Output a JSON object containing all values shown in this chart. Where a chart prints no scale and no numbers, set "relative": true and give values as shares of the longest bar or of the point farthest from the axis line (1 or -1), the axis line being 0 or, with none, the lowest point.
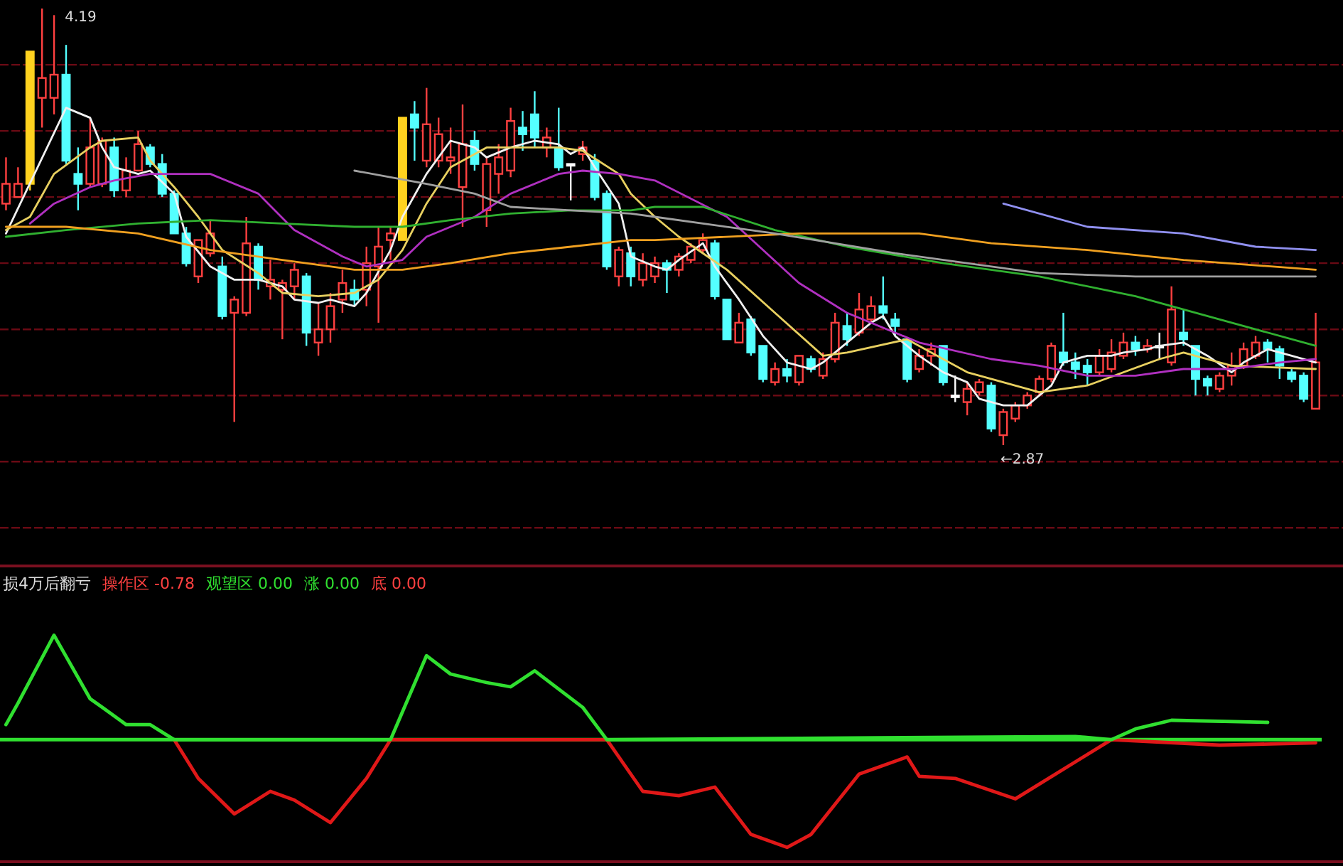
{
  "chart_data": [
    {
      "type": "candlestick",
      "grid": "y",
      "yticks": [
        {
          "value": 4.02,
          "label": null
        },
        {
          "value": 3.82,
          "label": null
        },
        {
          "value": 3.62,
          "label": null
        },
        {
          "value": 3.42,
          "label": null
        },
        {
          "value": 3.22,
          "label": null
        },
        {
          "value": 3.02,
          "label": null
        },
        {
          "value": 2.82,
          "label": null
        },
        {
          "value": 2.62,
          "label": null
        }
      ],
      "categories": [
        null,
        null,
        null,
        null,
        null,
        null,
        null,
        null,
        null,
        null,
        null,
        null,
        null,
        null,
        null,
        null,
        null,
        null,
        null,
        null,
        null,
        null,
        null,
        null,
        null,
        null,
        null,
        null,
        null,
        null,
        null,
        null,
        null,
        null,
        null,
        null,
        null,
        null,
        null,
        null,
        null,
        null,
        null,
        null,
        null,
        null,
        null,
        null,
        null,
        null,
        null,
        null,
        null,
        null,
        null,
        null,
        null,
        null,
        null,
        null,
        null,
        null,
        null,
        null,
        null,
        null,
        null,
        null,
        null,
        null,
        null,
        null,
        null,
        null,
        null,
        null,
        null,
        null,
        null,
        null,
        null,
        null,
        null,
        null,
        null,
        null,
        null,
        null,
        null,
        null,
        null,
        null,
        null,
        null,
        null,
        null,
        null,
        null,
        null,
        null,
        null,
        null,
        null,
        null,
        null,
        null,
        null,
        null,
        null,
        null
      ],
      "ohlc": [
        [
          3.6,
          3.74,
          3.58,
          3.66
        ],
        [
          3.62,
          3.71,
          3.62,
          3.66
        ],
        [
          3.66,
          4.06,
          3.64,
          4.06
        ],
        [
          3.92,
          4.19,
          3.83,
          3.98
        ],
        [
          3.92,
          4.17,
          3.87,
          3.99
        ],
        [
          3.99,
          4.08,
          3.72,
          3.73
        ],
        [
          3.69,
          3.77,
          3.58,
          3.66
        ],
        [
          3.66,
          3.86,
          3.65,
          3.77
        ],
        [
          3.66,
          3.8,
          3.65,
          3.79
        ],
        [
          3.77,
          3.8,
          3.62,
          3.64
        ],
        [
          3.64,
          3.74,
          3.62,
          3.7
        ],
        [
          3.7,
          3.82,
          3.7,
          3.78
        ],
        [
          3.77,
          3.78,
          3.71,
          3.72
        ],
        [
          3.72,
          3.75,
          3.62,
          3.63
        ],
        [
          3.63,
          3.64,
          3.51,
          3.51
        ],
        [
          3.51,
          3.53,
          3.41,
          3.42
        ],
        [
          3.38,
          3.49,
          3.36,
          3.49
        ],
        [
          3.45,
          3.55,
          3.44,
          3.51
        ],
        [
          3.41,
          3.44,
          3.25,
          3.26
        ],
        [
          3.27,
          3.32,
          2.94,
          3.31
        ],
        [
          3.27,
          3.56,
          3.26,
          3.48
        ],
        [
          3.47,
          3.48,
          3.34,
          3.37
        ],
        [
          3.35,
          3.43,
          3.31,
          3.37
        ],
        [
          3.34,
          3.37,
          3.19,
          3.36
        ],
        [
          3.35,
          3.42,
          3.31,
          3.4
        ],
        [
          3.38,
          3.39,
          3.17,
          3.21
        ],
        [
          3.18,
          3.3,
          3.14,
          3.22
        ],
        [
          3.22,
          3.33,
          3.18,
          3.29
        ],
        [
          3.31,
          3.4,
          3.27,
          3.36
        ],
        [
          3.34,
          3.37,
          3.29,
          3.31
        ],
        [
          3.34,
          3.47,
          3.29,
          3.42
        ],
        [
          3.41,
          3.53,
          3.24,
          3.47
        ],
        [
          3.49,
          3.53,
          3.43,
          3.51
        ],
        [
          3.49,
          3.86,
          3.49,
          3.86
        ],
        [
          3.87,
          3.91,
          3.73,
          3.83
        ],
        [
          3.73,
          3.95,
          3.71,
          3.84
        ],
        [
          3.73,
          3.86,
          3.71,
          3.81
        ],
        [
          3.73,
          3.83,
          3.69,
          3.74
        ],
        [
          3.65,
          3.9,
          3.53,
          3.78
        ],
        [
          3.79,
          3.82,
          3.7,
          3.72
        ],
        [
          3.58,
          3.74,
          3.53,
          3.72
        ],
        [
          3.69,
          3.78,
          3.63,
          3.74
        ],
        [
          3.7,
          3.89,
          3.68,
          3.85
        ],
        [
          3.83,
          3.88,
          3.76,
          3.81
        ],
        [
          3.87,
          3.94,
          3.77,
          3.8
        ],
        [
          3.77,
          3.83,
          3.74,
          3.8
        ],
        [
          3.77,
          3.89,
          3.7,
          3.71
        ],
        [
          3.72,
          3.72,
          3.61,
          3.72
        ],
        [
          3.75,
          3.79,
          3.73,
          3.77
        ],
        [
          3.73,
          3.75,
          3.61,
          3.62
        ],
        [
          3.63,
          3.64,
          3.4,
          3.41
        ],
        [
          3.38,
          3.47,
          3.35,
          3.46
        ],
        [
          3.45,
          3.47,
          3.35,
          3.38
        ],
        [
          3.37,
          3.45,
          3.35,
          3.42
        ],
        [
          3.38,
          3.44,
          3.36,
          3.42
        ],
        [
          3.42,
          3.43,
          3.33,
          3.4
        ],
        [
          3.4,
          3.45,
          3.38,
          3.44
        ],
        [
          3.43,
          3.48,
          3.42,
          3.47
        ],
        [
          3.46,
          3.51,
          3.45,
          3.49
        ],
        [
          3.48,
          3.49,
          3.31,
          3.32
        ],
        [
          3.31,
          3.31,
          3.19,
          3.19
        ],
        [
          3.18,
          3.27,
          3.18,
          3.24
        ],
        [
          3.25,
          3.26,
          3.14,
          3.15
        ],
        [
          3.17,
          3.17,
          3.06,
          3.07
        ],
        [
          3.06,
          3.12,
          3.05,
          3.1
        ],
        [
          3.1,
          3.13,
          3.06,
          3.08
        ],
        [
          3.06,
          3.14,
          3.05,
          3.14
        ],
        [
          3.13,
          3.14,
          3.09,
          3.1
        ],
        [
          3.08,
          3.15,
          3.07,
          3.13
        ],
        [
          3.13,
          3.27,
          3.12,
          3.24
        ],
        [
          3.23,
          3.27,
          3.17,
          3.19
        ],
        [
          3.21,
          3.33,
          3.2,
          3.28
        ],
        [
          3.25,
          3.32,
          3.24,
          3.29
        ],
        [
          3.29,
          3.38,
          3.25,
          3.27
        ],
        [
          3.25,
          3.27,
          3.2,
          3.23
        ],
        [
          3.19,
          3.19,
          3.06,
          3.07
        ],
        [
          3.1,
          3.16,
          3.09,
          3.14
        ],
        [
          3.14,
          3.18,
          3.11,
          3.16
        ],
        [
          3.17,
          3.17,
          3.05,
          3.06
        ],
        [
          3.02,
          3.08,
          3.0,
          3.02
        ],
        [
          3.0,
          3.06,
          2.96,
          3.04
        ],
        [
          3.03,
          3.07,
          3.02,
          3.06
        ],
        [
          3.05,
          3.06,
          2.91,
          2.92
        ],
        [
          2.9,
          2.98,
          2.87,
          2.97
        ],
        [
          2.95,
          3.0,
          2.94,
          2.99
        ],
        [
          2.99,
          3.03,
          2.98,
          3.02
        ],
        [
          3.03,
          3.08,
          3.02,
          3.07
        ],
        [
          3.07,
          3.18,
          3.06,
          3.17
        ],
        [
          3.15,
          3.27,
          3.11,
          3.12
        ],
        [
          3.12,
          3.15,
          3.07,
          3.1
        ],
        [
          3.11,
          3.13,
          3.05,
          3.09
        ],
        [
          3.09,
          3.16,
          3.08,
          3.14
        ],
        [
          3.1,
          3.19,
          3.09,
          3.15
        ],
        [
          3.14,
          3.21,
          3.13,
          3.18
        ],
        [
          3.18,
          3.2,
          3.14,
          3.16
        ],
        [
          3.16,
          3.19,
          3.15,
          3.17
        ],
        [
          3.17,
          3.21,
          3.13,
          3.17
        ],
        [
          3.12,
          3.35,
          3.11,
          3.28
        ],
        [
          3.21,
          3.28,
          3.17,
          3.19
        ],
        [
          3.17,
          3.17,
          3.02,
          3.07
        ],
        [
          3.07,
          3.08,
          3.02,
          3.05
        ],
        [
          3.04,
          3.09,
          3.03,
          3.08
        ],
        [
          3.08,
          3.15,
          3.05,
          3.11
        ],
        [
          3.11,
          3.18,
          3.1,
          3.16
        ],
        [
          3.14,
          3.2,
          3.13,
          3.18
        ],
        [
          3.18,
          3.19,
          3.12,
          3.16
        ],
        [
          3.16,
          3.17,
          3.07,
          3.11
        ],
        [
          3.09,
          3.1,
          3.06,
          3.07
        ],
        [
          3.08,
          3.09,
          3.0,
          3.01
        ],
        [
          2.98,
          3.27,
          2.98,
          3.12
        ]
      ],
      "colors": [
        "#ff4040",
        "#ff4040",
        "#ffd21f",
        "#ff4040",
        "#ff4040",
        "#54ffff",
        "#54ffff",
        "#ff4040",
        "#ff4040",
        "#54ffff",
        "#ff4040",
        "#ff4040",
        "#54ffff",
        "#54ffff",
        "#54ffff",
        "#54ffff",
        "#ff4040",
        "#ff4040",
        "#54ffff",
        "#ff4040",
        "#ff4040",
        "#54ffff",
        "#ff4040",
        "#ff4040",
        "#ff4040",
        "#54ffff",
        "#ff4040",
        "#ff4040",
        "#ff4040",
        "#54ffff",
        "#ff4040",
        "#ff4040",
        "#ff4040",
        "#ffd21f",
        "#54ffff",
        "#ff4040",
        "#ff4040",
        "#ff4040",
        "#ff4040",
        "#54ffff",
        "#ff4040",
        "#ff4040",
        "#ff4040",
        "#54ffff",
        "#54ffff",
        "#ff4040",
        "#54ffff",
        "#ffffff",
        "#ff4040",
        "#54ffff",
        "#54ffff",
        "#ff4040",
        "#54ffff",
        "#ff4040",
        "#ff4040",
        "#54ffff",
        "#ff4040",
        "#ff4040",
        "#ff4040",
        "#54ffff",
        "#54ffff",
        "#ff4040",
        "#54ffff",
        "#54ffff",
        "#ff4040",
        "#54ffff",
        "#ff4040",
        "#54ffff",
        "#ff4040",
        "#ff4040",
        "#54ffff",
        "#ff4040",
        "#ff4040",
        "#54ffff",
        "#54ffff",
        "#54ffff",
        "#ff4040",
        "#ff4040",
        "#54ffff",
        "#ffffff",
        "#ff4040",
        "#ff4040",
        "#54ffff",
        "#ff4040",
        "#ff4040",
        "#ff4040",
        "#ff4040",
        "#ff4040",
        "#54ffff",
        "#54ffff",
        "#54ffff",
        "#ff4040",
        "#ff4040",
        "#ff4040",
        "#54ffff",
        "#ff4040",
        "#ffffff",
        "#ff4040",
        "#54ffff",
        "#54ffff",
        "#54ffff",
        "#ff4040",
        "#ff4040",
        "#ff4040",
        "#ff4040",
        "#54ffff",
        "#54ffff",
        "#54ffff",
        "#54ffff",
        "#ff4040"
      ],
      "series": [
        {
          "type": "line",
          "color": "#f0f0f0",
          "values": [
            3.51,
            null,
            null,
            null,
            null,
            3.89,
            null,
            3.86,
            3.77,
            3.71,
            null,
            3.69,
            3.7,
            null,
            3.63,
            3.5,
            null,
            3.41,
            null,
            3.37,
            null,
            3.37,
            null,
            3.35,
            3.31,
            null,
            3.3,
            3.31,
            null,
            3.29,
            3.33,
            null,
            3.46,
            3.56,
            null,
            3.69,
            null,
            3.79,
            null,
            3.77,
            3.74,
            null,
            3.77,
            null,
            3.79,
            null,
            3.78,
            3.75,
            3.77,
            3.71,
            null,
            3.6,
            3.44,
            null,
            3.41,
            3.4,
            3.43,
            null,
            3.48,
            3.41,
            null,
            3.31,
            null,
            3.2,
            null,
            3.12,
            null,
            3.1,
            3.12,
            null,
            3.18,
            null,
            3.24,
            3.26,
            3.2,
            null,
            3.14,
            null,
            3.09,
            null,
            3.06,
            3.01,
            null,
            2.99,
            null,
            2.99,
            null,
            3.05,
            3.12,
            null,
            3.14,
            null,
            3.14,
            3.15,
            null,
            3.16,
            3.17,
            null,
            3.18,
            null,
            3.14,
            null,
            3.09,
            3.12,
            null,
            3.16,
            null,
            3.14,
            null,
            3.12
          ]
        },
        {
          "type": "line",
          "color": "#e8d060",
          "values": [
            3.52,
            null,
            3.56,
            null,
            3.69,
            null,
            null,
            3.77,
            3.79,
            null,
            null,
            3.8,
            3.73,
            null,
            3.65,
            null,
            3.56,
            null,
            3.46,
            null,
            null,
            3.39,
            null,
            3.33,
            null,
            null,
            3.32,
            null,
            null,
            3.33,
            null,
            3.37,
            null,
            3.46,
            null,
            3.6,
            null,
            3.71,
            null,
            null,
            3.77,
            null,
            null,
            3.77,
            null,
            null,
            3.77,
            null,
            3.76,
            null,
            null,
            3.69,
            3.63,
            null,
            3.56,
            null,
            3.5,
            null,
            null,
            null,
            3.4,
            null,
            null,
            null,
            3.27,
            null,
            null,
            null,
            3.14,
            null,
            3.15,
            null,
            null,
            null,
            null,
            3.19,
            null,
            null,
            null,
            null,
            3.09,
            null,
            null,
            null,
            null,
            null,
            3.03,
            null,
            null,
            null,
            3.05,
            null,
            null,
            null,
            null,
            null,
            3.13,
            null,
            3.15,
            null,
            null,
            null,
            3.11,
            null,
            null,
            null,
            null,
            null,
            null,
            3.1
          ]
        },
        {
          "type": "line",
          "color": "#b030c0",
          "values": [
            null,
            null,
            3.54,
            null,
            3.6,
            null,
            null,
            3.65,
            null,
            3.67,
            null,
            null,
            3.69,
            null,
            null,
            null,
            null,
            3.69,
            null,
            null,
            null,
            3.63,
            null,
            null,
            3.52,
            null,
            null,
            null,
            3.44,
            null,
            3.41,
            null,
            null,
            3.43,
            null,
            3.5,
            null,
            null,
            null,
            3.56,
            null,
            null,
            3.63,
            null,
            null,
            null,
            3.69,
            null,
            3.7,
            null,
            null,
            3.69,
            null,
            null,
            3.67,
            null,
            null,
            null,
            null,
            null,
            3.56,
            null,
            null,
            null,
            null,
            null,
            3.36,
            null,
            null,
            null,
            3.27,
            null,
            null,
            null,
            null,
            null,
            3.18,
            null,
            null,
            null,
            null,
            null,
            3.13,
            null,
            null,
            null,
            3.11,
            null,
            null,
            null,
            3.08,
            null,
            null,
            null,
            3.08,
            null,
            null,
            null,
            3.1,
            null,
            null,
            null,
            3.1,
            null,
            null,
            null,
            3.12,
            null,
            null,
            3.13
          ]
        },
        {
          "type": "line",
          "color": "#30b030",
          "values": [
            3.5,
            null,
            null,
            null,
            null,
            3.52,
            null,
            null,
            null,
            null,
            null,
            3.54,
            null,
            null,
            null,
            null,
            null,
            3.55,
            null,
            null,
            null,
            null,
            null,
            3.54,
            null,
            null,
            null,
            null,
            null,
            3.53,
            null,
            null,
            null,
            3.53,
            null,
            null,
            null,
            3.55,
            null,
            null,
            null,
            null,
            3.57,
            null,
            null,
            null,
            null,
            3.58,
            null,
            null,
            null,
            null,
            3.58,
            null,
            3.59,
            null,
            null,
            null,
            3.59,
            null,
            null,
            null,
            null,
            null,
            3.52,
            null,
            null,
            null,
            null,
            null,
            3.47,
            null,
            null,
            null,
            null,
            null,
            null,
            null,
            3.42,
            null,
            null,
            null,
            null,
            null,
            null,
            null,
            3.38,
            null,
            null,
            null,
            null,
            null,
            null,
            null,
            3.32,
            null,
            null,
            null,
            null,
            null,
            null,
            null,
            3.24,
            null,
            null,
            null,
            null,
            null,
            null,
            3.17
          ]
        },
        {
          "type": "line",
          "color": "#f0a020",
          "values": [
            3.53,
            null,
            null,
            null,
            null,
            3.53,
            null,
            null,
            null,
            null,
            null,
            3.51,
            null,
            null,
            null,
            null,
            null,
            3.46,
            null,
            null,
            null,
            null,
            null,
            3.43,
            null,
            null,
            null,
            null,
            null,
            3.4,
            null,
            null,
            null,
            3.4,
            null,
            null,
            null,
            3.42,
            null,
            null,
            null,
            null,
            3.45,
            null,
            null,
            null,
            null,
            3.47,
            null,
            null,
            null,
            null,
            3.49,
            null,
            3.49,
            null,
            null,
            null,
            null,
            null,
            null,
            null,
            null,
            null,
            null,
            null,
            3.51,
            null,
            null,
            null,
            null,
            null,
            null,
            null,
            null,
            null,
            3.51,
            null,
            null,
            null,
            null,
            null,
            3.48,
            null,
            null,
            null,
            null,
            null,
            null,
            null,
            3.46,
            null,
            null,
            null,
            null,
            null,
            null,
            null,
            3.43,
            null,
            null,
            null,
            null,
            null,
            null,
            null,
            null,
            null,
            null,
            3.4
          ]
        },
        {
          "type": "line",
          "color": "#a0a0a0",
          "values": [
            null,
            null,
            null,
            null,
            null,
            null,
            null,
            null,
            null,
            null,
            null,
            null,
            null,
            null,
            null,
            null,
            null,
            null,
            null,
            null,
            null,
            null,
            null,
            null,
            null,
            null,
            null,
            null,
            null,
            3.7,
            null,
            null,
            null,
            null,
            null,
            3.66,
            null,
            null,
            null,
            3.63,
            null,
            null,
            3.59,
            null,
            null,
            null,
            null,
            3.58,
            null,
            null,
            null,
            null,
            3.57,
            null,
            3.56,
            null,
            null,
            null,
            null,
            null,
            null,
            null,
            null,
            null,
            3.51,
            null,
            null,
            null,
            null,
            null,
            null,
            null,
            null,
            null,
            3.45,
            null,
            null,
            null,
            null,
            null,
            null,
            null,
            null,
            null,
            null,
            null,
            3.39,
            null,
            null,
            null,
            null,
            null,
            null,
            null,
            3.38,
            null,
            null,
            null,
            null,
            null,
            null,
            null,
            null,
            null,
            null,
            null,
            null,
            null,
            null,
            3.38
          ]
        },
        {
          "type": "line",
          "color": "#9090f0",
          "values": [
            null,
            null,
            null,
            null,
            null,
            null,
            null,
            null,
            null,
            null,
            null,
            null,
            null,
            null,
            null,
            null,
            null,
            null,
            null,
            null,
            null,
            null,
            null,
            null,
            null,
            null,
            null,
            null,
            null,
            null,
            null,
            null,
            null,
            null,
            null,
            null,
            null,
            null,
            null,
            null,
            null,
            null,
            null,
            null,
            null,
            null,
            null,
            null,
            null,
            null,
            null,
            null,
            null,
            null,
            null,
            null,
            null,
            null,
            null,
            null,
            null,
            null,
            null,
            null,
            null,
            null,
            null,
            null,
            null,
            null,
            null,
            null,
            null,
            null,
            null,
            null,
            null,
            null,
            null,
            null,
            null,
            null,
            null,
            3.6,
            null,
            null,
            null,
            null,
            null,
            null,
            3.53,
            null,
            null,
            null,
            null,
            null,
            null,
            null,
            3.51,
            null,
            null,
            null,
            null,
            null,
            3.47,
            null,
            null,
            null,
            null,
            3.46
          ]
        }
      ],
      "annotations": [
        "4.19",
        "←2.87"
      ]
    },
    {
      "type": "line",
      "relative": true,
      "title": "损4万后翻亏",
      "annotations": [
        "操作区 -0.78",
        "观望区 0.00",
        "涨 0.00",
        "底 0.00"
      ],
      "categories": [
        null,
        null,
        null,
        null,
        null,
        null,
        null,
        null,
        null,
        null,
        null,
        null,
        null,
        null,
        null,
        null,
        null,
        null,
        null,
        null,
        null,
        null,
        null,
        null,
        null,
        null,
        null,
        null,
        null,
        null,
        null,
        null,
        null,
        null,
        null,
        null,
        null,
        null,
        null,
        null,
        null,
        null,
        null,
        null,
        null,
        null,
        null,
        null,
        null,
        null,
        null,
        null,
        null,
        null,
        null,
        null,
        null,
        null,
        null,
        null,
        null,
        null,
        null,
        null,
        null,
        null,
        null,
        null,
        null,
        null,
        null,
        null,
        null,
        null,
        null,
        null,
        null,
        null,
        null,
        null,
        null,
        null,
        null,
        null,
        null,
        null,
        null,
        null,
        null,
        null,
        null,
        null,
        null,
        null,
        null,
        null,
        null,
        null,
        null,
        null,
        null,
        null,
        null,
        null,
        null,
        null,
        null,
        null,
        null,
        null
      ],
      "ref_lines": [
        {
          "axis": "y",
          "value": 0,
          "color": "#30e030"
        }
      ],
      "series": [
        {
          "color": "#e01818",
          "values": [
            null,
            null,
            null,
            null,
            null,
            null,
            null,
            null,
            null,
            null,
            null,
            null,
            null,
            null,
            0,
            null,
            -0.36,
            null,
            null,
            -0.69,
            null,
            null,
            -0.48,
            null,
            -0.56,
            null,
            null,
            -0.77,
            null,
            null,
            -0.36,
            null,
            0,
            null,
            null,
            null,
            null,
            null,
            null,
            null,
            null,
            null,
            null,
            null,
            null,
            null,
            null,
            null,
            null,
            null,
            0,
            null,
            null,
            -0.48,
            null,
            null,
            -0.52,
            null,
            null,
            -0.44,
            null,
            null,
            -0.88,
            null,
            null,
            -1,
            null,
            -0.88,
            null,
            null,
            null,
            -0.32,
            null,
            null,
            null,
            -0.16,
            -0.34,
            null,
            null,
            -0.36,
            null,
            null,
            null,
            null,
            -0.55,
            null,
            null,
            null,
            null,
            null,
            null,
            null,
            0,
            null,
            null,
            null,
            null,
            null,
            null,
            null,
            null,
            -0.05,
            null,
            null,
            null,
            null,
            null,
            null,
            null,
            -0.03
          ]
        },
        {
          "color": "#30e030",
          "values": [
            0.14,
            0.34,
            null,
            null,
            0.97,
            null,
            null,
            0.38,
            0.3,
            null,
            0.14,
            null,
            0.14,
            null,
            0,
            null,
            null,
            null,
            null,
            null,
            null,
            null,
            null,
            null,
            null,
            null,
            null,
            null,
            null,
            null,
            null,
            null,
            0,
            null,
            null,
            0.78,
            null,
            0.61,
            null,
            null,
            0.53,
            null,
            0.49,
            null,
            0.64,
            null,
            null,
            null,
            0.3,
            null,
            0,
            null,
            null,
            null,
            null,
            null,
            null,
            null,
            null,
            null,
            null,
            null,
            null,
            null,
            null,
            null,
            null,
            null,
            null,
            null,
            null,
            null,
            null,
            null,
            null,
            null,
            null,
            null,
            null,
            null,
            null,
            null,
            null,
            null,
            null,
            null,
            null,
            null,
            null,
            0.03,
            null,
            null,
            0,
            null,
            0.1,
            null,
            null,
            0.18,
            null,
            null,
            null,
            null,
            null,
            null,
            null,
            0.16,
            null,
            null,
            null,
            null
          ]
        }
      ]
    }
  ]
}
